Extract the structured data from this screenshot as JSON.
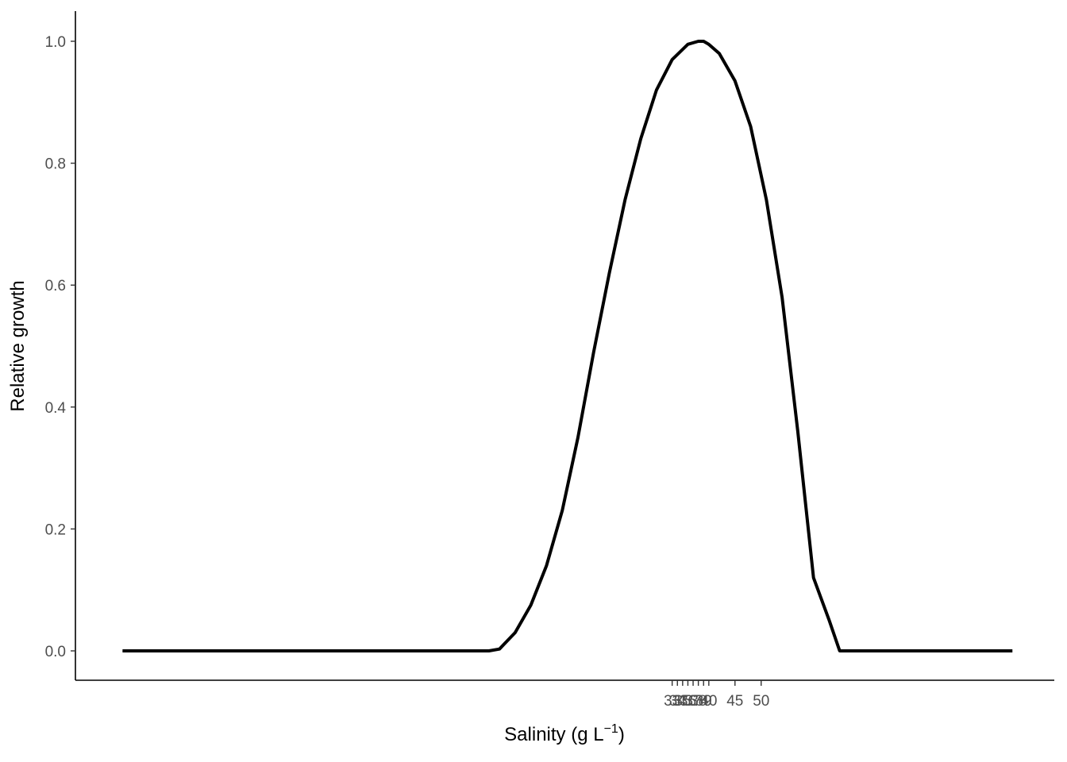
{
  "chart_data": {
    "type": "line",
    "title": "",
    "xlabel": "Salinity (g L",
    "xlabel_sup": "−1",
    "xlabel_close": ")",
    "ylabel": "Relative growth",
    "xlim": [
      -81,
      106
    ],
    "ylim": [
      0,
      1
    ],
    "grid": false,
    "legend": "none",
    "yticks": [
      0,
      0.2,
      0.4,
      0.6,
      0.8,
      1
    ],
    "ytick_labels": [
      "0.0",
      "0.2",
      "0.4",
      "0.6",
      "0.8",
      "1.0"
    ],
    "xticks": [
      33,
      34,
      35,
      36,
      37,
      38,
      39,
      40,
      45,
      50
    ],
    "xtick_labels": [
      "33",
      "34",
      "35",
      "36",
      "37",
      "38",
      "39",
      "40",
      "45",
      "50"
    ],
    "series": [
      {
        "color": "#000000",
        "x": [
          -72,
          -65,
          -58,
          -51,
          -44,
          -37,
          -30,
          -23,
          -16,
          -9,
          -2,
          0,
          3,
          6,
          9,
          12,
          15,
          18,
          21,
          24,
          27,
          30,
          33,
          36,
          38,
          39,
          40,
          42,
          45,
          48,
          51,
          54,
          57,
          60,
          63,
          65,
          67,
          70,
          75,
          80,
          85,
          90,
          95,
          98
        ],
        "y": [
          0,
          0,
          0,
          0,
          0,
          0,
          0,
          0,
          0,
          0,
          0,
          0.003,
          0.03,
          0.075,
          0.14,
          0.23,
          0.35,
          0.49,
          0.62,
          0.74,
          0.84,
          0.92,
          0.97,
          0.995,
          1.0,
          1.0,
          0.995,
          0.98,
          0.935,
          0.86,
          0.74,
          0.58,
          0.36,
          0.12,
          0.05,
          0,
          0,
          0,
          0,
          0,
          0,
          0,
          0,
          0
        ]
      }
    ]
  }
}
